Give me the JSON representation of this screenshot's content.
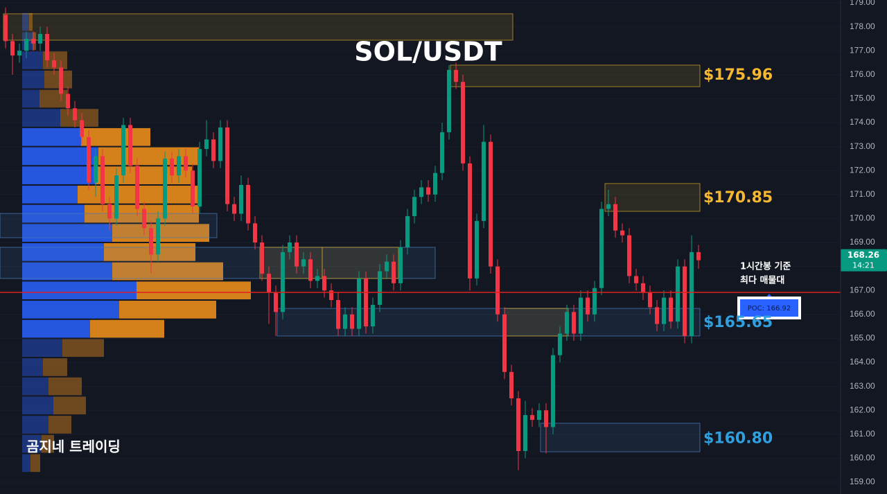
{
  "chart_data": {
    "type": "candlestick",
    "title": "SOL/USDT",
    "ylim": [
      159,
      179
    ],
    "yticks": [
      {
        "value": 159,
        "label": "159.00"
      },
      {
        "value": 160,
        "label": "160.00"
      },
      {
        "value": 161,
        "label": "161.00"
      },
      {
        "value": 162,
        "label": "162.00"
      },
      {
        "value": 163,
        "label": "163.00"
      },
      {
        "value": 164,
        "label": "164.00"
      },
      {
        "value": 165,
        "label": "165.00"
      },
      {
        "value": 166,
        "label": "166.00"
      },
      {
        "value": 167,
        "label": "167.00"
      },
      {
        "value": 168,
        "label": "168.00"
      },
      {
        "value": 169,
        "label": "169.00"
      },
      {
        "value": 170,
        "label": "170.00"
      },
      {
        "value": 171,
        "label": "171.00"
      },
      {
        "value": 172,
        "label": "172.00"
      },
      {
        "value": 173,
        "label": "173.00"
      },
      {
        "value": 174,
        "label": "174.00"
      },
      {
        "value": 175,
        "label": "175.00"
      },
      {
        "value": 176,
        "label": "176.00"
      },
      {
        "value": 177,
        "label": "177.00"
      },
      {
        "value": 178,
        "label": "178.00"
      },
      {
        "value": 179,
        "label": "179.00"
      }
    ],
    "grid": true,
    "up_color": "#089981",
    "down_color": "#f23645",
    "candles": [
      [
        178.5,
        178.8,
        177.1,
        177.4
      ],
      [
        177.4,
        177.7,
        176.0,
        176.8
      ],
      [
        176.8,
        177.3,
        176.5,
        177.0
      ],
      [
        177.0,
        177.8,
        176.7,
        177.5
      ],
      [
        177.5,
        177.8,
        177.0,
        177.3
      ],
      [
        177.3,
        178.0,
        177.0,
        177.7
      ],
      [
        177.7,
        178.0,
        176.3,
        176.6
      ],
      [
        176.6,
        176.9,
        176.0,
        176.3
      ],
      [
        176.3,
        176.6,
        174.9,
        175.2
      ],
      [
        175.2,
        175.5,
        174.3,
        174.6
      ],
      [
        174.6,
        174.9,
        173.8,
        174.1
      ],
      [
        174.1,
        174.4,
        173.1,
        173.4
      ],
      [
        173.4,
        173.7,
        171.2,
        171.5
      ],
      [
        171.5,
        172.9,
        170.9,
        172.6
      ],
      [
        172.6,
        172.9,
        170.3,
        170.6
      ],
      [
        170.6,
        170.9,
        169.5,
        170.0
      ],
      [
        170.0,
        172.1,
        169.7,
        171.8
      ],
      [
        171.8,
        174.2,
        171.5,
        173.9
      ],
      [
        173.9,
        174.2,
        171.9,
        172.2
      ],
      [
        172.2,
        172.5,
        170.1,
        170.4
      ],
      [
        170.4,
        170.7,
        169.3,
        169.6
      ],
      [
        169.6,
        169.9,
        167.7,
        168.5
      ],
      [
        168.5,
        170.3,
        168.2,
        170.0
      ],
      [
        170.0,
        172.8,
        169.7,
        172.5
      ],
      [
        172.5,
        172.8,
        171.5,
        171.8
      ],
      [
        171.8,
        172.9,
        171.5,
        172.6
      ],
      [
        172.6,
        172.9,
        171.7,
        172.0
      ],
      [
        172.0,
        172.3,
        170.2,
        170.5
      ],
      [
        170.5,
        173.2,
        170.2,
        172.9
      ],
      [
        172.9,
        174.1,
        172.6,
        173.3
      ],
      [
        173.3,
        173.6,
        172.1,
        172.4
      ],
      [
        172.4,
        174.1,
        172.1,
        173.8
      ],
      [
        173.8,
        174.1,
        170.3,
        170.6
      ],
      [
        170.6,
        170.9,
        169.9,
        170.2
      ],
      [
        170.2,
        171.8,
        169.9,
        171.4
      ],
      [
        171.4,
        171.7,
        169.5,
        169.8
      ],
      [
        169.8,
        170.1,
        168.7,
        169.0
      ],
      [
        169.0,
        169.3,
        167.4,
        167.7
      ],
      [
        167.7,
        168.0,
        165.6,
        166.9
      ],
      [
        166.9,
        167.2,
        165.1,
        166.1
      ],
      [
        166.1,
        168.9,
        165.8,
        168.6
      ],
      [
        168.6,
        169.3,
        168.3,
        169.0
      ],
      [
        169.0,
        169.3,
        167.7,
        168.0
      ],
      [
        168.0,
        168.6,
        167.7,
        168.3
      ],
      [
        168.3,
        168.6,
        167.1,
        167.4
      ],
      [
        167.4,
        167.9,
        167.1,
        167.6
      ],
      [
        167.6,
        167.9,
        166.7,
        167.0
      ],
      [
        167.0,
        167.3,
        166.3,
        166.6
      ],
      [
        166.6,
        166.9,
        165.1,
        165.4
      ],
      [
        165.4,
        166.3,
        165.1,
        166.0
      ],
      [
        166.0,
        166.3,
        165.1,
        165.4
      ],
      [
        165.4,
        167.8,
        165.1,
        167.5
      ],
      [
        167.5,
        167.8,
        165.2,
        165.5
      ],
      [
        165.5,
        166.7,
        165.2,
        166.4
      ],
      [
        166.4,
        168.1,
        166.1,
        167.8
      ],
      [
        167.8,
        168.5,
        167.5,
        168.2
      ],
      [
        168.2,
        168.5,
        167.0,
        167.3
      ],
      [
        167.3,
        169.1,
        167.0,
        168.8
      ],
      [
        168.8,
        170.4,
        168.5,
        170.1
      ],
      [
        170.1,
        171.2,
        169.8,
        170.9
      ],
      [
        170.9,
        171.6,
        170.6,
        171.3
      ],
      [
        171.3,
        171.6,
        170.7,
        171.0
      ],
      [
        171.0,
        172.2,
        170.7,
        171.9
      ],
      [
        171.9,
        174.0,
        171.6,
        173.6
      ],
      [
        173.6,
        176.4,
        173.3,
        176.2
      ],
      [
        176.2,
        176.5,
        175.4,
        175.7
      ],
      [
        175.7,
        176.0,
        172.0,
        172.3
      ],
      [
        172.3,
        172.6,
        167.0,
        167.5
      ],
      [
        167.5,
        170.2,
        167.2,
        169.9
      ],
      [
        169.9,
        173.9,
        169.6,
        173.2
      ],
      [
        173.2,
        173.5,
        167.7,
        168.0
      ],
      [
        168.0,
        168.3,
        165.7,
        166.0
      ],
      [
        166.0,
        166.3,
        163.3,
        163.6
      ],
      [
        163.6,
        163.9,
        162.2,
        162.5
      ],
      [
        162.5,
        162.8,
        159.5,
        160.3
      ],
      [
        160.3,
        162.4,
        160.0,
        161.8
      ],
      [
        161.8,
        162.1,
        161.3,
        161.6
      ],
      [
        161.6,
        162.3,
        161.3,
        162.0
      ],
      [
        162.0,
        162.3,
        160.2,
        161.3
      ],
      [
        161.3,
        164.6,
        161.0,
        164.3
      ],
      [
        164.3,
        165.5,
        164.0,
        165.2
      ],
      [
        165.2,
        166.4,
        164.9,
        166.1
      ],
      [
        166.1,
        166.4,
        164.9,
        165.2
      ],
      [
        165.2,
        167.0,
        164.9,
        166.7
      ],
      [
        166.7,
        167.0,
        165.7,
        166.0
      ],
      [
        166.0,
        167.4,
        165.7,
        167.1
      ],
      [
        167.1,
        170.7,
        166.8,
        170.4
      ],
      [
        170.4,
        171.2,
        170.1,
        170.6
      ],
      [
        170.6,
        170.9,
        169.2,
        169.5
      ],
      [
        169.5,
        169.8,
        169.0,
        169.3
      ],
      [
        169.3,
        169.6,
        167.3,
        167.6
      ],
      [
        167.6,
        167.9,
        167.0,
        167.3
      ],
      [
        167.3,
        167.6,
        166.6,
        166.9
      ],
      [
        166.9,
        167.2,
        166.0,
        166.3
      ],
      [
        166.3,
        166.6,
        165.3,
        165.6
      ],
      [
        165.6,
        167.0,
        165.3,
        166.7
      ],
      [
        166.7,
        167.0,
        165.4,
        165.7
      ],
      [
        165.7,
        168.3,
        165.4,
        168.0
      ],
      [
        168.0,
        168.3,
        164.8,
        165.1
      ],
      [
        165.1,
        169.3,
        164.8,
        168.6
      ],
      [
        168.6,
        168.9,
        167.9,
        168.26
      ]
    ],
    "volume_profile": {
      "levels": [
        178.2,
        177.4,
        176.6,
        175.8,
        175.0,
        174.2,
        173.4,
        172.6,
        171.8,
        171.0,
        170.2,
        169.4,
        168.6,
        167.8,
        167.0,
        166.2,
        165.4,
        164.6,
        163.8,
        163.0,
        162.2,
        161.4,
        160.6,
        159.8
      ],
      "buy": [
        10,
        15,
        30,
        32,
        25,
        55,
        85,
        110,
        105,
        80,
        90,
        130,
        118,
        130,
        165,
        140,
        98,
        58,
        30,
        38,
        45,
        38,
        28,
        12
      ],
      "sell": [
        5,
        5,
        35,
        40,
        40,
        55,
        100,
        145,
        140,
        175,
        165,
        140,
        132,
        160,
        165,
        140,
        107,
        60,
        35,
        48,
        47,
        33,
        18,
        14
      ],
      "buy_color": "#2962ff",
      "sell_color": "#f7931a",
      "value_area": [
        164.8,
        173.6
      ]
    },
    "zones": [
      {
        "low": 177.44,
        "high": 178.54,
        "from": -0.3,
        "to": 73.2,
        "color": "#c9a227"
      },
      {
        "low": 175.5,
        "high": 176.4,
        "from": 64.2,
        "to": 100.2,
        "color": "#c9a227"
      },
      {
        "low": 170.3,
        "high": 171.46,
        "from": 86.5,
        "to": 100.2,
        "color": "#c9a227"
      },
      {
        "low": 169.2,
        "high": 170.21,
        "from": -0.8,
        "to": 30.5,
        "color": "#4a7bb7"
      },
      {
        "low": 167.5,
        "high": 168.8,
        "from": -0.8,
        "to": 62,
        "color": "#4a7bb7"
      },
      {
        "low": 167.5,
        "high": 168.8,
        "from": 36.7,
        "to": 45.7,
        "color": "#c9a227"
      },
      {
        "low": 167.5,
        "high": 168.8,
        "from": 45.7,
        "to": 56.7,
        "color": "#c9a227"
      },
      {
        "low": 165.1,
        "high": 166.25,
        "from": 39.2,
        "to": 100.2,
        "color": "#4a7bb7"
      },
      {
        "low": 165.1,
        "high": 166.25,
        "from": 72,
        "to": 81.2,
        "color": "#c9a227"
      },
      {
        "low": 160.27,
        "high": 161.46,
        "from": 77.2,
        "to": 100.2,
        "color": "#4a7bb7"
      }
    ],
    "price_labels": [
      {
        "price": 175.96,
        "label": "$175.96",
        "color": "#f5b830"
      },
      {
        "price": 170.85,
        "label": "$170.85",
        "color": "#f5b830"
      },
      {
        "price": 165.65,
        "label": "$165.65",
        "color": "#2f9fe0"
      },
      {
        "price": 160.8,
        "label": "$160.80",
        "color": "#2f9fe0"
      }
    ],
    "poc": {
      "value": 166.92,
      "label": "POC: 166.92",
      "color": "#e02020"
    },
    "annotation": [
      "1시간봉 기준",
      "최다 매물대"
    ],
    "current": {
      "value": 168.26,
      "label": "168.26",
      "time": "14:21"
    },
    "watermark": "곰지네 트레이딩"
  }
}
